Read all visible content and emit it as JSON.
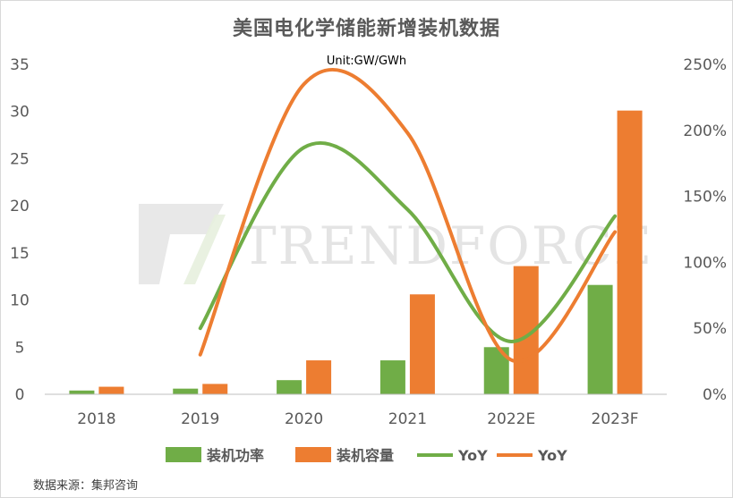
{
  "title": "美国电化学储能新增装机数据",
  "unit": "Unit:GW/GWh",
  "source": "数据来源：集邦咨询",
  "watermark": "TRENDFORCE",
  "colors": {
    "green": "#70ad47",
    "orange": "#ed7d31",
    "axis": "#595959",
    "gridline": "#d9d9d9"
  },
  "chart_data": {
    "type": "bar",
    "categories": [
      "2018",
      "2019",
      "2020",
      "2021",
      "2022E",
      "2023F"
    ],
    "series": [
      {
        "name": "装机功率",
        "type": "bar",
        "axis": "left",
        "color": "#70ad47",
        "values": [
          0.4,
          0.6,
          1.5,
          3.6,
          5.0,
          11.6
        ]
      },
      {
        "name": "装机容量",
        "type": "bar",
        "axis": "left",
        "color": "#ed7d31",
        "values": [
          0.8,
          1.1,
          3.6,
          10.6,
          13.6,
          30.1
        ]
      },
      {
        "name": "YoY",
        "type": "line",
        "axis": "right",
        "color": "#70ad47",
        "values": [
          null,
          0.5,
          1.87,
          1.4,
          0.4,
          1.35
        ]
      },
      {
        "name": "YoY",
        "type": "line",
        "axis": "right",
        "color": "#ed7d31",
        "values": [
          null,
          0.3,
          2.35,
          1.98,
          0.26,
          1.23
        ]
      }
    ],
    "y_left": {
      "min": 0,
      "max": 35,
      "ticks": [
        "0",
        "5",
        "10",
        "15",
        "20",
        "25",
        "30",
        "35"
      ]
    },
    "y_right": {
      "min": 0,
      "max": 2.5,
      "ticks": [
        "0%",
        "50%",
        "100%",
        "150%",
        "200%",
        "250%"
      ]
    },
    "grid": false,
    "legend_position": "bottom"
  }
}
